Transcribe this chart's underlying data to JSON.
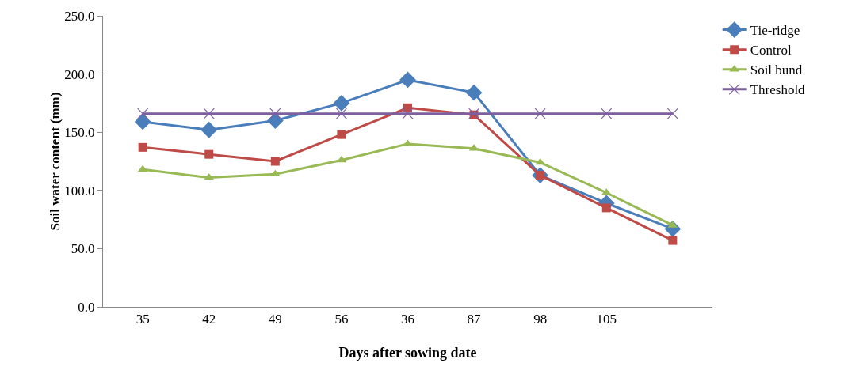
{
  "chart_data": {
    "type": "line",
    "xlabel": "Days after sowing date",
    "ylabel": "Soil water content (mm)",
    "categories": [
      "35",
      "42",
      "49",
      "56",
      "36",
      "87",
      "98",
      "105",
      null
    ],
    "series": [
      {
        "name": "Tie-ridge",
        "color": "#4a7ebb",
        "marker": "diamond",
        "values": [
          159,
          152,
          160,
          175,
          195,
          184,
          113,
          89,
          67
        ]
      },
      {
        "name": "Control",
        "color": "#be4b48",
        "marker": "square",
        "values": [
          137,
          131,
          125,
          148,
          171,
          165,
          113,
          85,
          57
        ]
      },
      {
        "name": "Soil bund",
        "color": "#98b954",
        "marker": "triangle",
        "values": [
          118,
          111,
          114,
          126,
          140,
          136,
          124,
          98,
          70
        ]
      },
      {
        "name": "Threshold",
        "color": "#7d5fa0",
        "marker": "cross",
        "values": [
          166,
          166,
          166,
          166,
          166,
          166,
          166,
          166,
          166
        ]
      }
    ],
    "ylim": [
      0,
      250
    ],
    "yticks": [
      {
        "value": 0,
        "label": "0.0"
      },
      {
        "value": 50,
        "label": "50.0"
      },
      {
        "value": 100,
        "label": "100.0"
      },
      {
        "value": 150,
        "label": "150.0"
      },
      {
        "value": 200,
        "label": "200.0"
      },
      {
        "value": 250,
        "label": "250.0"
      }
    ],
    "grid": false,
    "legend": "top right",
    "line_style": "solid"
  }
}
